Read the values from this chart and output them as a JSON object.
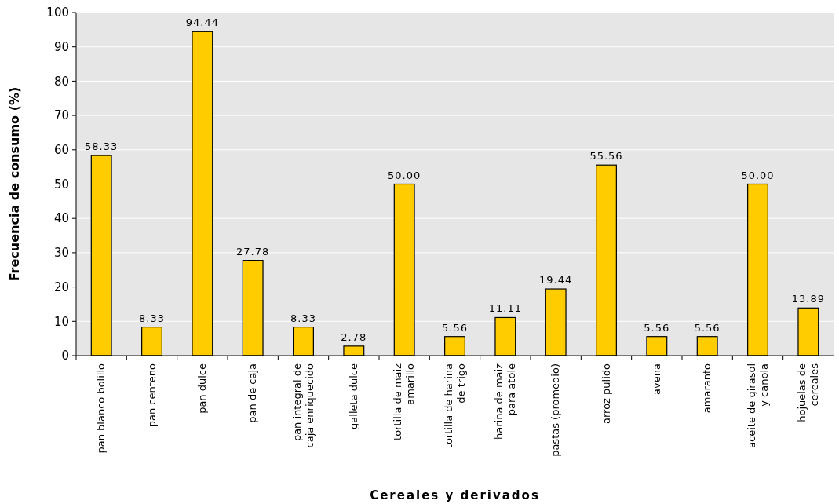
{
  "chart_data": {
    "type": "bar",
    "xlabel": "Cereales y derivados",
    "ylabel": "Frecuencia de consumo (%)",
    "categories": [
      "pan blanco bolillo",
      "pan centeno",
      "pan dulce",
      "pan de caja",
      "pan integral de caja enriquecido",
      "galleta dulce",
      "tortilla de maiz amarillo",
      "tortilla de harina de trigo",
      "harina de maiz para atole",
      "pastas (promedio)",
      "arroz pulido",
      "avena",
      "amaranto",
      "aceite de girasol y canola",
      "hojuelas de cereales"
    ],
    "values": [
      58.33,
      8.33,
      94.44,
      27.78,
      8.33,
      2.78,
      50,
      5.56,
      11.11,
      19.44,
      55.56,
      5.56,
      5.56,
      50,
      13.89
    ],
    "value_labels": [
      "58.33",
      "8.33",
      "94.44",
      "27.78",
      "8.33",
      "2.78",
      "50.00",
      "5.56",
      "11.11",
      "19.44",
      "55.56",
      "5.56",
      "5.56",
      "50.00",
      "13.89"
    ],
    "color": "#ffcc00",
    "ylim": [
      0,
      100
    ],
    "yticks": [
      0,
      10,
      20,
      30,
      40,
      50,
      60,
      70,
      80,
      90,
      100
    ],
    "grid": "y"
  }
}
